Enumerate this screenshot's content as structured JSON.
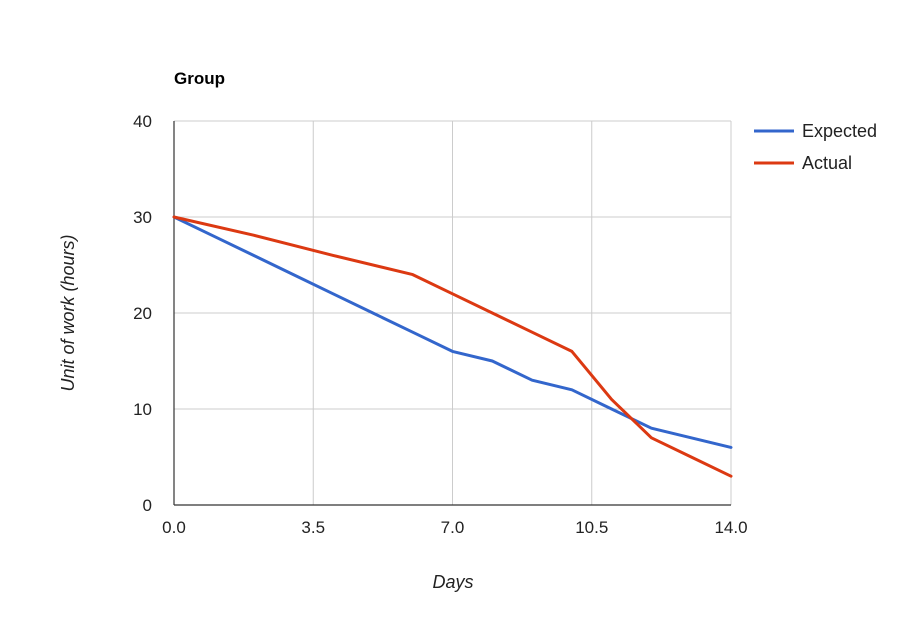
{
  "chart_data": {
    "type": "line",
    "title": "Group",
    "xlabel": "Days",
    "ylabel": "Unit of work (hours)",
    "xlim": [
      0,
      14
    ],
    "ylim": [
      0,
      40
    ],
    "x_ticks": [
      "0.0",
      "3.5",
      "7.0",
      "10.5",
      "14.0"
    ],
    "y_ticks": [
      "0",
      "10",
      "20",
      "30",
      "40"
    ],
    "grid": true,
    "legend_position": "right",
    "series": [
      {
        "name": "Expected",
        "color": "#3366cc",
        "points": [
          {
            "x": 0,
            "y": 30
          },
          {
            "x": 1,
            "y": 28
          },
          {
            "x": 2,
            "y": 26
          },
          {
            "x": 3,
            "y": 24
          },
          {
            "x": 4,
            "y": 22
          },
          {
            "x": 5,
            "y": 20
          },
          {
            "x": 6,
            "y": 18
          },
          {
            "x": 7,
            "y": 16
          },
          {
            "x": 8,
            "y": 15
          },
          {
            "x": 9,
            "y": 13
          },
          {
            "x": 10,
            "y": 12
          },
          {
            "x": 11,
            "y": 10
          },
          {
            "x": 12,
            "y": 8
          },
          {
            "x": 13,
            "y": 7
          },
          {
            "x": 14,
            "y": 6
          }
        ]
      },
      {
        "name": "Actual",
        "color": "#dc3912",
        "points": [
          {
            "x": 0,
            "y": 30
          },
          {
            "x": 2,
            "y": 28.1
          },
          {
            "x": 4,
            "y": 26
          },
          {
            "x": 6,
            "y": 24
          },
          {
            "x": 7,
            "y": 22
          },
          {
            "x": 8,
            "y": 20
          },
          {
            "x": 9,
            "y": 18
          },
          {
            "x": 10,
            "y": 16
          },
          {
            "x": 11,
            "y": 11
          },
          {
            "x": 12,
            "y": 7
          },
          {
            "x": 13,
            "y": 5
          },
          {
            "x": 14,
            "y": 3
          }
        ]
      }
    ]
  }
}
